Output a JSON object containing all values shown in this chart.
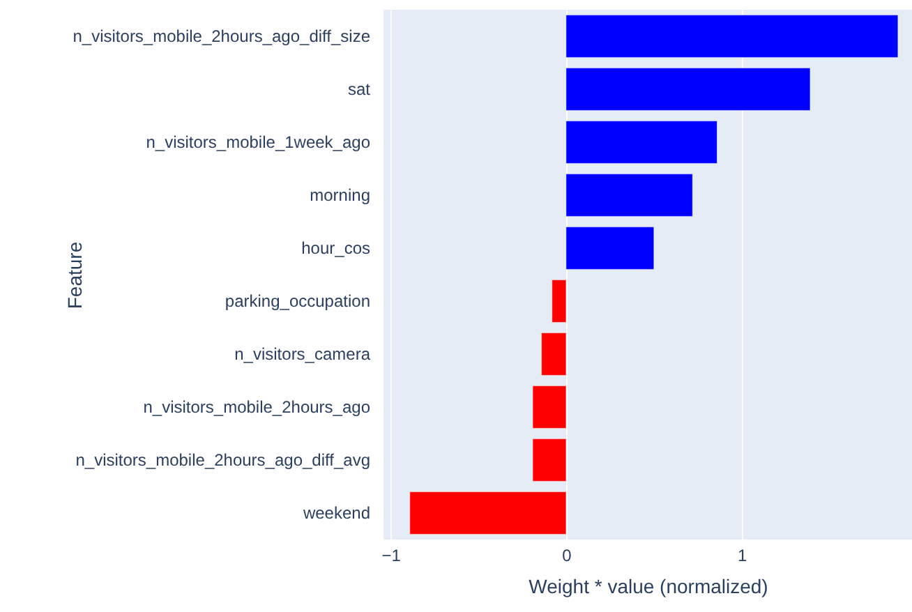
{
  "chart_data": {
    "type": "bar",
    "orientation": "horizontal",
    "xlabel": "Weight * value (normalized)",
    "ylabel": "Feature",
    "categories": [
      "n_visitors_mobile_2hours_ago_diff_size",
      "sat",
      "n_visitors_mobile_1week_ago",
      "morning",
      "hour_cos",
      "parking_occupation",
      "n_visitors_camera",
      "n_visitors_mobile_2hours_ago",
      "n_visitors_mobile_2hours_ago_diff_avg",
      "weekend"
    ],
    "values": [
      1.89,
      1.39,
      0.86,
      0.72,
      0.5,
      -0.08,
      -0.14,
      -0.19,
      -0.19,
      -0.89
    ],
    "colors": [
      "#0000ff",
      "#0000ff",
      "#0000ff",
      "#0000ff",
      "#0000ff",
      "#ff0000",
      "#ff0000",
      "#ff0000",
      "#ff0000",
      "#ff0000"
    ],
    "xlim": [
      -1.04,
      1.97
    ],
    "xticks": [
      {
        "value": -1,
        "label": "−1"
      },
      0,
      1
    ],
    "grid": "x"
  }
}
